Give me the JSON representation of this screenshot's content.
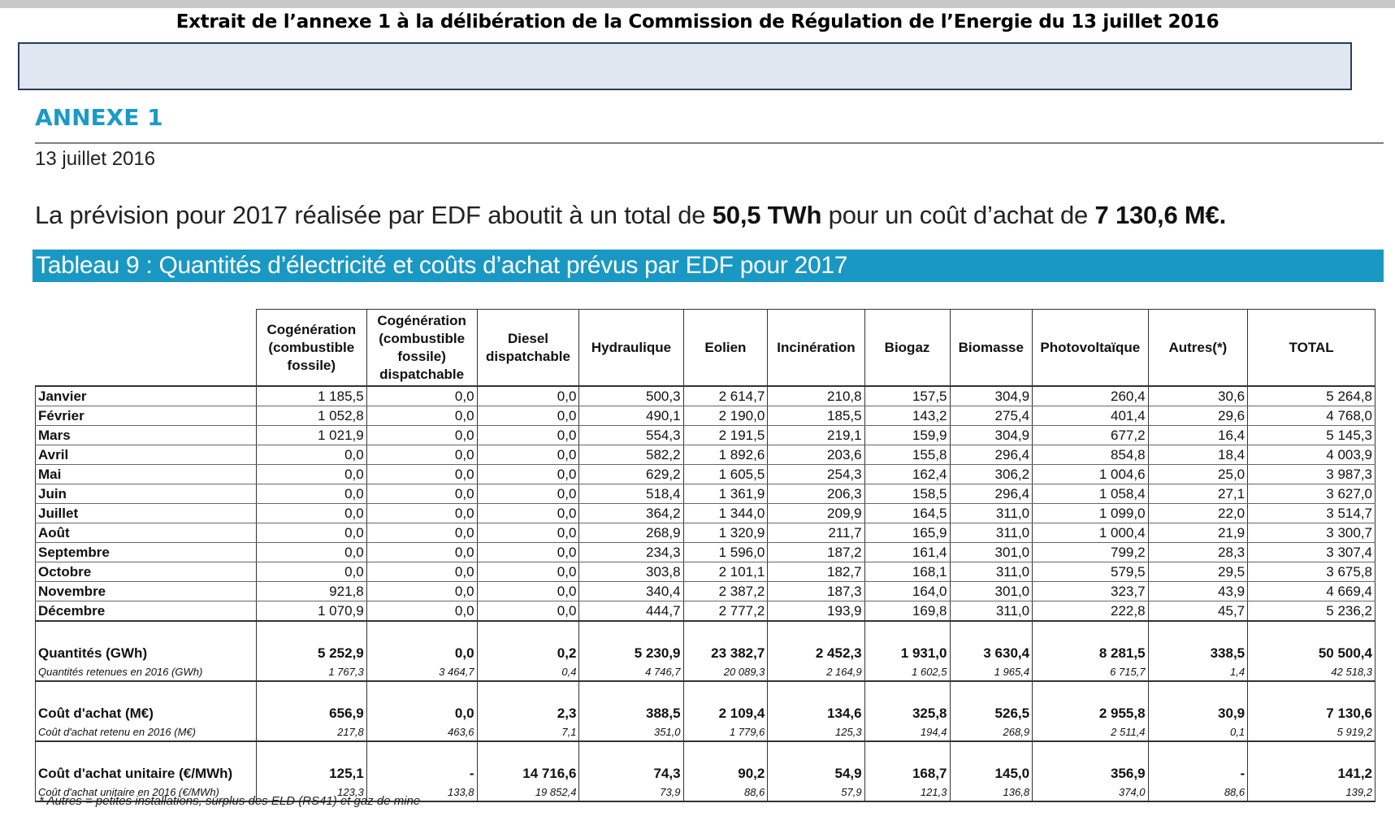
{
  "header": {
    "extrait": "Extrait de l’annexe 1 à la délibération de la Commission de Régulation de l’Energie du 13 juillet 2016"
  },
  "annexe": {
    "title": "ANNEXE 1",
    "date": "13 juillet 2016",
    "intro_before": "La prévision pour 2017 réalisée par EDF aboutit à un total de ",
    "intro_twh": "50,5 TWh",
    "intro_middle": " pour un coût d’achat de ",
    "intro_cost": "7 130,6 M€.",
    "table_title": "Tableau 9 : Quantités d’électricité et coûts d’achat prévus par EDF pour 2017"
  },
  "table": {
    "headers": [
      "Cogénération (combustible fossile)",
      "Cogénération (combustible fossile) dispatchable",
      "Diesel dispatchable",
      "Hydraulique",
      "Eolien",
      "Incinération",
      "Biogaz",
      "Biomasse",
      "Photovoltaïque",
      "Autres(*)",
      "TOTAL"
    ],
    "months": [
      {
        "label": "Janvier",
        "values": [
          "1 185,5",
          "0,0",
          "0,0",
          "500,3",
          "2 614,7",
          "210,8",
          "157,5",
          "304,9",
          "260,4",
          "30,6",
          "5 264,8"
        ]
      },
      {
        "label": "Février",
        "values": [
          "1 052,8",
          "0,0",
          "0,0",
          "490,1",
          "2 190,0",
          "185,5",
          "143,2",
          "275,4",
          "401,4",
          "29,6",
          "4 768,0"
        ]
      },
      {
        "label": "Mars",
        "values": [
          "1 021,9",
          "0,0",
          "0,0",
          "554,3",
          "2 191,5",
          "219,1",
          "159,9",
          "304,9",
          "677,2",
          "16,4",
          "5 145,3"
        ]
      },
      {
        "label": "Avril",
        "values": [
          "0,0",
          "0,0",
          "0,0",
          "582,2",
          "1 892,6",
          "203,6",
          "155,8",
          "296,4",
          "854,8",
          "18,4",
          "4 003,9"
        ]
      },
      {
        "label": "Mai",
        "values": [
          "0,0",
          "0,0",
          "0,0",
          "629,2",
          "1 605,5",
          "254,3",
          "162,4",
          "306,2",
          "1 004,6",
          "25,0",
          "3 987,3"
        ]
      },
      {
        "label": "Juin",
        "values": [
          "0,0",
          "0,0",
          "0,0",
          "518,4",
          "1 361,9",
          "206,3",
          "158,5",
          "296,4",
          "1 058,4",
          "27,1",
          "3 627,0"
        ]
      },
      {
        "label": "Juillet",
        "values": [
          "0,0",
          "0,0",
          "0,0",
          "364,2",
          "1 344,0",
          "209,9",
          "164,5",
          "311,0",
          "1 099,0",
          "22,0",
          "3 514,7"
        ]
      },
      {
        "label": "Août",
        "values": [
          "0,0",
          "0,0",
          "0,0",
          "268,9",
          "1 320,9",
          "211,7",
          "165,9",
          "311,0",
          "1 000,4",
          "21,9",
          "3 300,7"
        ]
      },
      {
        "label": "Septembre",
        "values": [
          "0,0",
          "0,0",
          "0,0",
          "234,3",
          "1 596,0",
          "187,2",
          "161,4",
          "301,0",
          "799,2",
          "28,3",
          "3 307,4"
        ]
      },
      {
        "label": "Octobre",
        "values": [
          "0,0",
          "0,0",
          "0,0",
          "303,8",
          "2 101,1",
          "182,7",
          "168,1",
          "311,0",
          "579,5",
          "29,5",
          "3 675,8"
        ]
      },
      {
        "label": "Novembre",
        "values": [
          "921,8",
          "0,0",
          "0,0",
          "340,4",
          "2 387,2",
          "187,3",
          "164,0",
          "301,0",
          "323,7",
          "43,9",
          "4 669,4"
        ]
      },
      {
        "label": "Décembre",
        "values": [
          "1 070,9",
          "0,0",
          "0,0",
          "444,7",
          "2 777,2",
          "193,9",
          "169,8",
          "311,0",
          "222,8",
          "45,7",
          "5 236,2"
        ]
      }
    ],
    "summary": [
      {
        "label": "Quantités (GWh)",
        "values": [
          "5 252,9",
          "0,0",
          "0,2",
          "5 230,9",
          "23 382,7",
          "2 452,3",
          "1 931,0",
          "3 630,4",
          "8 281,5",
          "338,5",
          "50 500,4"
        ],
        "sub_label": "Quantités retenues en 2016 (GWh)",
        "sub_values": [
          "1 767,3",
          "3 464,7",
          "0,4",
          "4 746,7",
          "20 089,3",
          "2 164,9",
          "1 602,5",
          "1 965,4",
          "6 715,7",
          "1,4",
          "42 518,3"
        ]
      },
      {
        "label": "Coût d'achat (M€)",
        "values": [
          "656,9",
          "0,0",
          "2,3",
          "388,5",
          "2 109,4",
          "134,6",
          "325,8",
          "526,5",
          "2 955,8",
          "30,9",
          "7 130,6"
        ],
        "sub_label": "Coût d'achat retenu en 2016 (M€)",
        "sub_values": [
          "217,8",
          "463,6",
          "7,1",
          "351,0",
          "1 779,6",
          "125,3",
          "194,4",
          "268,9",
          "2 511,4",
          "0,1",
          "5 919,2"
        ]
      },
      {
        "label": "Coût d'achat unitaire (€/MWh)",
        "values": [
          "125,1",
          "-",
          "14 716,6",
          "74,3",
          "90,2",
          "54,9",
          "168,7",
          "145,0",
          "356,9",
          "-",
          "141,2"
        ],
        "sub_label": "Coût d'achat unitaire en 2016 (€/MWh)",
        "sub_values": [
          "123,3",
          "133,8",
          "19 852,4",
          "73,9",
          "88,6",
          "57,9",
          "121,3",
          "136,8",
          "374,0",
          "88,6",
          "139,2"
        ]
      }
    ],
    "footnote": "* Autres = petites installations, surplus des ELD (RS41) et gaz de mine"
  }
}
